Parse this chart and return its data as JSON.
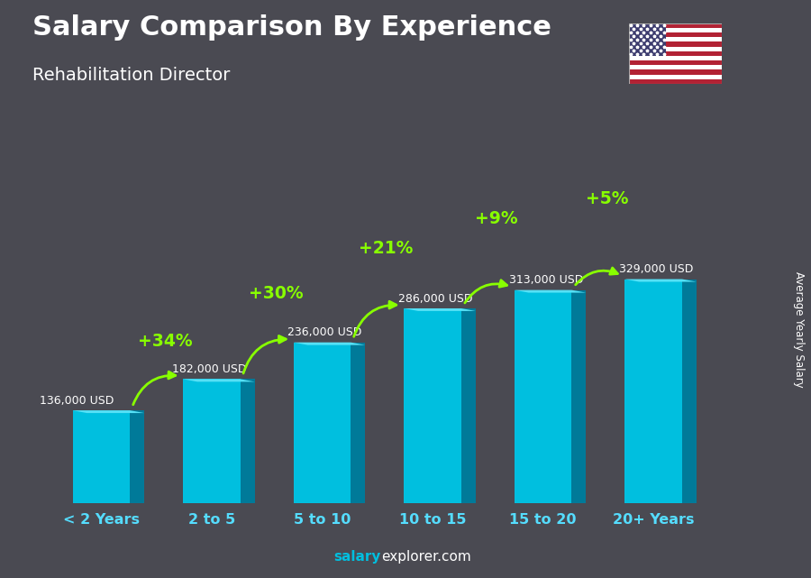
{
  "title": "Salary Comparison By Experience",
  "subtitle": "Rehabilitation Director",
  "categories": [
    "< 2 Years",
    "2 to 5",
    "5 to 10",
    "10 to 15",
    "15 to 20",
    "20+ Years"
  ],
  "values": [
    136000,
    182000,
    236000,
    286000,
    313000,
    329000
  ],
  "labels": [
    "136,000 USD",
    "182,000 USD",
    "236,000 USD",
    "286,000 USD",
    "313,000 USD",
    "329,000 USD"
  ],
  "pct_labels": [
    "+34%",
    "+30%",
    "+21%",
    "+9%",
    "+5%"
  ],
  "bar_color_face": "#00BFDF",
  "bar_color_dark": "#007A99",
  "bar_color_top": "#55E0F5",
  "bg_color": "#4a4a52",
  "title_color": "#ffffff",
  "subtitle_color": "#ffffff",
  "label_color": "#ffffff",
  "pct_color": "#88ff00",
  "tick_color": "#55DDFF",
  "footer_salary_color": "#00BFDF",
  "footer_explorer_color": "#ffffff",
  "ylabel": "Average Yearly Salary",
  "bar_width": 0.52,
  "ylim_max_factor": 1.55
}
